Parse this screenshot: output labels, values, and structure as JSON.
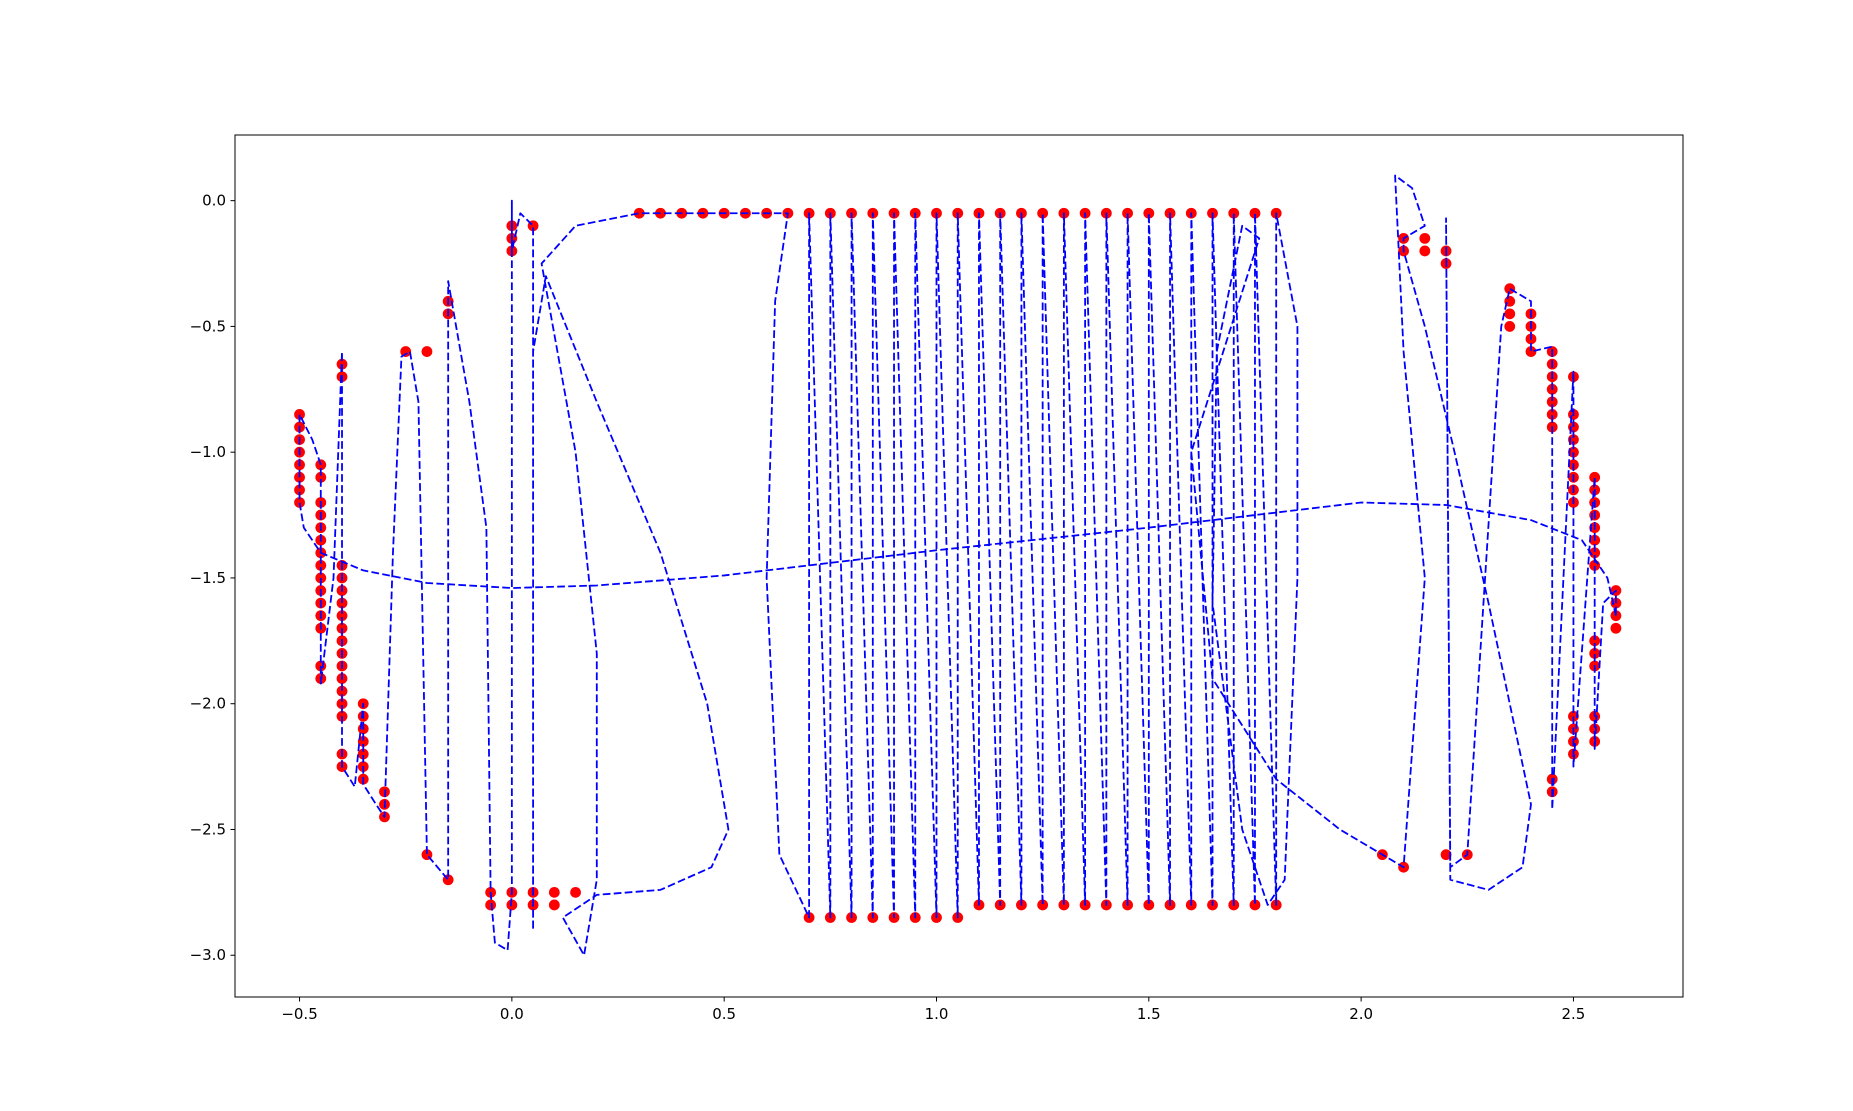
{
  "chart_data": {
    "type": "scatter",
    "xlim": [
      -0.652,
      2.758
    ],
    "ylim": [
      -3.166,
      0.261
    ],
    "xticks": [
      {
        "value": -0.5,
        "label": "−0.5"
      },
      {
        "value": 0,
        "label": "0.0"
      },
      0.5,
      {
        "value": 1,
        "label": "1.0"
      },
      1.5,
      {
        "value": 2,
        "label": "2.0"
      },
      2.5
    ],
    "yticks": [
      {
        "value": 0,
        "label": "0.0"
      },
      {
        "value": -0.5,
        "label": "−0.5"
      },
      {
        "value": -1,
        "label": "−1.0"
      },
      {
        "value": -1.5,
        "label": "−1.5"
      },
      {
        "value": -2,
        "label": "−2.0"
      },
      {
        "value": -2.5,
        "label": "−2.5"
      },
      {
        "value": -3,
        "label": "−3.0"
      }
    ],
    "series": [
      {
        "type": "line",
        "color": "#0000ff",
        "dashed": true,
        "x": [
          2.6,
          2.58,
          2.52,
          2.4,
          2.2,
          2,
          1.8,
          1.5,
          1,
          0.5,
          0.2,
          0,
          -0.2,
          -0.35,
          -0.45,
          -0.49,
          -0.5,
          -0.5,
          -0.47,
          -0.45,
          -0.45,
          -0.42,
          -0.4,
          -0.4,
          -0.37,
          -0.35,
          -0.35,
          -0.32,
          -0.3,
          -0.28,
          -0.26,
          -0.24,
          -0.22,
          -0.2,
          -0.15,
          -0.15,
          -0.1,
          -0.06,
          -0.05,
          -0.04,
          -0.01,
          0,
          0,
          0,
          0.02,
          0.05,
          0.05,
          0.05,
          0.08,
          0.2,
          0.35,
          0.46,
          0.51,
          0.47,
          0.35,
          0.2,
          0.12,
          0.17,
          0.2,
          0.2,
          0.15,
          0.07,
          0.15,
          0.3,
          0.65,
          0.62,
          0.6,
          0.63,
          0.7,
          0.7,
          0.75,
          0.75,
          0.8,
          0.8,
          0.85,
          0.85,
          0.9,
          0.9,
          0.95,
          0.95,
          1,
          1,
          1.05,
          1.05,
          1.1,
          1.1,
          1.15,
          1.15,
          1.2,
          1.2,
          1.25,
          1.25,
          1.3,
          1.3,
          1.35,
          1.35,
          1.4,
          1.4,
          1.45,
          1.45,
          1.5,
          1.5,
          1.55,
          1.55,
          1.6,
          1.6,
          1.65,
          1.65,
          1.7,
          1.7,
          1.75,
          1.75,
          1.8,
          1.8,
          1.85,
          1.85,
          1.82,
          1.78,
          1.72,
          1.65,
          1.66,
          1.72,
          1.76,
          1.6,
          1.65,
          1.8,
          1.95,
          2.05,
          2.1,
          2.15,
          2.1,
          2.08,
          2.12,
          2.15,
          2.1,
          2.1,
          2.15,
          2.22,
          2.3,
          2.4,
          2.38,
          2.3,
          2.21,
          2.2,
          2.21,
          2.25,
          2.33,
          2.35,
          2.4,
          2.4,
          2.45,
          2.45,
          2.5,
          2.5,
          2.55,
          2.55,
          2.57,
          2.6,
          2.6
        ],
        "values": [
          -1.65,
          -1.5,
          -1.35,
          -1.27,
          -1.21,
          -1.2,
          -1.24,
          -1.3,
          -1.39,
          -1.49,
          -1.53,
          -1.54,
          -1.52,
          -1.47,
          -1.4,
          -1.3,
          -1.2,
          -0.85,
          -0.95,
          -1.05,
          -1.92,
          -1.5,
          -0.6,
          -2.25,
          -2.33,
          -2,
          -2.32,
          -2.4,
          -2.45,
          -1.4,
          -0.62,
          -0.6,
          -0.8,
          -2.6,
          -2.7,
          -0.32,
          -0.8,
          -1.3,
          -2.75,
          -2.95,
          -2.98,
          -2.75,
          0,
          -0.2,
          -0.05,
          -0.1,
          -2.9,
          -0.6,
          -0.3,
          -0.8,
          -1.4,
          -2,
          -2.5,
          -2.65,
          -2.74,
          -2.76,
          -2.85,
          -3,
          -2.7,
          -1.8,
          -1,
          -0.25,
          -0.1,
          -0.05,
          -0.05,
          -0.4,
          -1.5,
          -2.6,
          -2.85,
          -0.05,
          -2.85,
          -0.05,
          -2.85,
          -0.05,
          -2.85,
          -0.05,
          -2.85,
          -0.05,
          -2.85,
          -0.05,
          -2.85,
          -0.05,
          -2.85,
          -0.05,
          -2.8,
          -0.05,
          -2.8,
          -0.05,
          -2.8,
          -0.05,
          -2.8,
          -0.05,
          -2.8,
          -0.05,
          -2.8,
          -0.05,
          -2.8,
          -0.05,
          -2.8,
          -0.05,
          -2.8,
          -0.05,
          -2.8,
          -0.05,
          -2.8,
          -0.05,
          -2.8,
          -0.05,
          -2.8,
          -0.05,
          -2.8,
          -0.05,
          -2.8,
          -0.05,
          -0.5,
          -1.5,
          -2.7,
          -2.8,
          -2.5,
          -1.6,
          -0.6,
          -0.1,
          -0.15,
          -1,
          -1.9,
          -2.3,
          -2.5,
          -2.6,
          -2.65,
          -1.5,
          -0.6,
          0.1,
          0.05,
          -0.1,
          -0.15,
          -0.2,
          -0.5,
          -1,
          -1.6,
          -2.4,
          -2.65,
          -2.74,
          -2.7,
          -0.07,
          -2.65,
          -2.6,
          -0.5,
          -0.35,
          -0.4,
          -0.6,
          -0.58,
          -2.42,
          -0.68,
          -2.25,
          -1.1,
          -2.18,
          -1.6,
          -1.55,
          -1.65
        ]
      },
      {
        "type": "scatter",
        "color": "#ff0000",
        "x": [
          -0.5,
          -0.5,
          -0.5,
          -0.5,
          -0.5,
          -0.5,
          -0.5,
          -0.5,
          -0.45,
          -0.45,
          -0.45,
          -0.45,
          -0.45,
          -0.45,
          -0.45,
          -0.45,
          -0.45,
          -0.45,
          -0.45,
          -0.45,
          -0.45,
          -0.45,
          -0.45,
          -0.4,
          -0.4,
          -0.4,
          -0.4,
          -0.4,
          -0.4,
          -0.4,
          -0.4,
          -0.4,
          -0.4,
          -0.4,
          -0.4,
          -0.4,
          -0.4,
          -0.4,
          -0.4,
          -0.4,
          -0.35,
          -0.35,
          -0.35,
          -0.35,
          -0.35,
          -0.35,
          -0.35,
          -0.3,
          -0.3,
          -0.3,
          -0.25,
          -0.2,
          -0.2,
          -0.15,
          -0.15,
          -0.15,
          -0.05,
          -0.05,
          0,
          0,
          0,
          0,
          0,
          0.05,
          0.05,
          0.05,
          0.1,
          0.1,
          0.15,
          0.3,
          0.35,
          0.4,
          0.45,
          0.5,
          0.55,
          0.6,
          0.65,
          0.7,
          0.75,
          0.8,
          0.85,
          0.9,
          0.95,
          1,
          1.05,
          1.1,
          1.15,
          1.2,
          1.25,
          1.3,
          1.35,
          1.4,
          1.45,
          1.5,
          1.55,
          1.6,
          1.65,
          1.7,
          1.75,
          1.8,
          0.7,
          0.75,
          0.8,
          0.85,
          0.9,
          0.95,
          1,
          1.05,
          1.1,
          1.15,
          1.2,
          1.25,
          1.3,
          1.35,
          1.4,
          1.45,
          1.5,
          1.55,
          1.6,
          1.65,
          1.7,
          1.75,
          1.8,
          2.05,
          2.1,
          2.1,
          2.1,
          2.15,
          2.15,
          2.2,
          2.2,
          2.2,
          2.25,
          2.35,
          2.35,
          2.35,
          2.35,
          2.4,
          2.4,
          2.4,
          2.4,
          2.45,
          2.45,
          2.45,
          2.45,
          2.45,
          2.45,
          2.45,
          2.45,
          2.45,
          2.5,
          2.5,
          2.5,
          2.5,
          2.5,
          2.5,
          2.5,
          2.5,
          2.5,
          2.5,
          2.5,
          2.5,
          2.5,
          2.55,
          2.55,
          2.55,
          2.55,
          2.55,
          2.55,
          2.55,
          2.55,
          2.55,
          2.55,
          2.55,
          2.55,
          2.55,
          2.55,
          2.6,
          2.6,
          2.6,
          2.6
        ],
        "values": [
          -0.85,
          -0.9,
          -0.95,
          -1,
          -1.05,
          -1.1,
          -1.15,
          -1.2,
          -1.05,
          -1.1,
          -1.2,
          -1.25,
          -1.3,
          -1.35,
          -1.4,
          -1.45,
          -1.5,
          -1.55,
          -1.6,
          -1.65,
          -1.7,
          -1.85,
          -1.9,
          -0.65,
          -0.7,
          -1.45,
          -1.5,
          -1.55,
          -1.6,
          -1.65,
          -1.7,
          -1.75,
          -1.8,
          -1.85,
          -1.9,
          -1.95,
          -2,
          -2.05,
          -2.2,
          -2.25,
          -2,
          -2.05,
          -2.1,
          -2.15,
          -2.2,
          -2.25,
          -2.3,
          -2.35,
          -2.4,
          -2.45,
          -0.6,
          -0.6,
          -2.6,
          -0.4,
          -0.45,
          -2.7,
          -2.75,
          -2.8,
          -0.1,
          -0.15,
          -0.2,
          -2.75,
          -2.8,
          -0.1,
          -2.75,
          -2.8,
          -2.75,
          -2.8,
          -2.75,
          -0.05,
          -0.05,
          -0.05,
          -0.05,
          -0.05,
          -0.05,
          -0.05,
          -0.05,
          -0.05,
          -0.05,
          -0.05,
          -0.05,
          -0.05,
          -0.05,
          -0.05,
          -0.05,
          -0.05,
          -0.05,
          -0.05,
          -0.05,
          -0.05,
          -0.05,
          -0.05,
          -0.05,
          -0.05,
          -0.05,
          -0.05,
          -0.05,
          -0.05,
          -0.05,
          -0.05,
          -2.85,
          -2.85,
          -2.85,
          -2.85,
          -2.85,
          -2.85,
          -2.85,
          -2.85,
          -2.8,
          -2.8,
          -2.8,
          -2.8,
          -2.8,
          -2.8,
          -2.8,
          -2.8,
          -2.8,
          -2.8,
          -2.8,
          -2.8,
          -2.8,
          -2.8,
          -2.8,
          -2.6,
          -2.65,
          -0.15,
          -0.2,
          -0.15,
          -0.2,
          -0.2,
          -0.25,
          -2.6,
          -2.6,
          -0.35,
          -0.4,
          -0.45,
          -0.5,
          -0.45,
          -0.5,
          -0.55,
          -0.6,
          -0.6,
          -0.65,
          -0.7,
          -0.75,
          -0.8,
          -0.85,
          -0.9,
          -2.3,
          -2.35,
          -0.7,
          -0.85,
          -0.9,
          -0.95,
          -1,
          -1.05,
          -1.1,
          -1.15,
          -1.2,
          -2.05,
          -2.1,
          -2.15,
          -2.2,
          -1.1,
          -1.15,
          -1.2,
          -1.25,
          -1.3,
          -1.35,
          -1.4,
          -1.45,
          -1.75,
          -1.8,
          -1.85,
          -2.05,
          -2.1,
          -2.15,
          -1.55,
          -1.6,
          -1.65,
          -1.7
        ]
      }
    ]
  }
}
